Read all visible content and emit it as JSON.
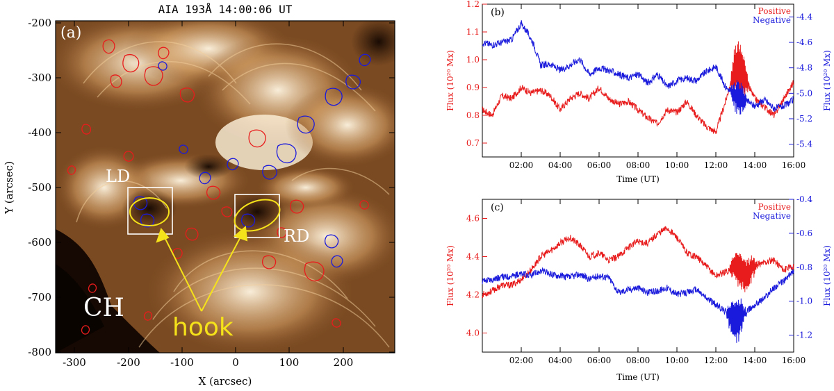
{
  "panel_a": {
    "title": "AIA 193Å 14:00:06 UT",
    "label": "(a)",
    "xlabel": "X (arcsec)",
    "ylabel": "Y (arcsec)",
    "x_ticks": [
      "-300",
      "-200",
      "-100",
      "0",
      "100",
      "200"
    ],
    "y_ticks": [
      "-200",
      "-300",
      "-400",
      "-500",
      "-600",
      "-700",
      "-800"
    ],
    "annotations": {
      "ld": "LD",
      "rd": "RD",
      "ch": "CH",
      "hook": "hook"
    },
    "colors": {
      "positive_contour": "#e81c1c",
      "negative_contour": "#1a1adc",
      "hook": "#f5e21a",
      "box": "#ffffff"
    }
  },
  "chart_data": [
    {
      "type": "line",
      "panel_label": "(b)",
      "xlabel": "Time (UT)",
      "ylabel_left": "Flux (10²⁰ Mx)",
      "ylabel_right": "Flux (10²⁰ Mx)",
      "x_ticks": [
        "02:00",
        "04:00",
        "06:00",
        "08:00",
        "10:00",
        "12:00",
        "14:00",
        "16:00"
      ],
      "y_left_ticks": [
        "1.2",
        "1.1",
        "1.0",
        "0.9",
        "0.8",
        "0.7"
      ],
      "y_right_ticks": [
        "-4.4",
        "-4.6",
        "-4.8",
        "-5.0",
        "-5.2",
        "-5.4"
      ],
      "xlim_hours": [
        0,
        16
      ],
      "ylim_left": [
        0.65,
        1.2
      ],
      "ylim_right": [
        -5.5,
        -4.3
      ],
      "legend": [
        "Positive",
        "Negative"
      ],
      "series": [
        {
          "name": "Positive",
          "axis": "left",
          "color": "#e81c1c",
          "t": [
            0,
            0.5,
            1,
            1.5,
            2,
            2.5,
            3,
            3.5,
            4,
            4.5,
            5,
            5.5,
            6,
            6.5,
            7,
            7.5,
            8,
            8.5,
            9,
            9.5,
            10,
            10.5,
            11,
            11.5,
            12,
            12.5,
            13,
            13.5,
            14,
            14.5,
            15,
            15.5,
            16
          ],
          "values": [
            0.82,
            0.8,
            0.87,
            0.86,
            0.9,
            0.88,
            0.89,
            0.87,
            0.82,
            0.86,
            0.88,
            0.86,
            0.9,
            0.86,
            0.84,
            0.85,
            0.82,
            0.79,
            0.77,
            0.82,
            0.81,
            0.85,
            0.8,
            0.76,
            0.74,
            0.85,
            0.98,
            0.93,
            0.86,
            0.83,
            0.8,
            0.86,
            0.92
          ],
          "oscillation_window": [
            12.7,
            13.7
          ],
          "oscillation_amp": 0.1
        },
        {
          "name": "Negative",
          "axis": "right",
          "color": "#1a1adc",
          "t": [
            0,
            0.5,
            1,
            1.5,
            2,
            2.3,
            2.6,
            3,
            3.5,
            4,
            4.5,
            5,
            5.5,
            6,
            6.5,
            7,
            7.5,
            8,
            8.5,
            9,
            9.5,
            10,
            10.5,
            11,
            11.5,
            12,
            12.5,
            13,
            13.5,
            14,
            14.5,
            15,
            15.5,
            16
          ],
          "values": [
            -4.6,
            -4.62,
            -4.6,
            -4.58,
            -4.45,
            -4.52,
            -4.6,
            -4.78,
            -4.77,
            -4.82,
            -4.78,
            -4.73,
            -4.85,
            -4.8,
            -4.82,
            -4.85,
            -4.88,
            -4.85,
            -4.92,
            -4.85,
            -4.95,
            -4.9,
            -4.88,
            -4.9,
            -4.83,
            -4.79,
            -4.95,
            -5.02,
            -5.05,
            -5.1,
            -5.05,
            -5.12,
            -5.1,
            -5.05
          ],
          "oscillation_window": [
            12.7,
            13.6
          ],
          "oscillation_amp": 0.12
        }
      ]
    },
    {
      "type": "line",
      "panel_label": "(c)",
      "xlabel": "Time (UT)",
      "ylabel_left": "Flux (10²⁰ Mx)",
      "ylabel_right": "Flux (10²⁰ Mx)",
      "x_ticks": [
        "02:00",
        "04:00",
        "06:00",
        "08:00",
        "10:00",
        "12:00",
        "14:00",
        "16:00"
      ],
      "y_left_ticks": [
        "4.6",
        "4.4",
        "4.2",
        "4.0"
      ],
      "y_right_ticks": [
        "-0.4",
        "-0.6",
        "-0.8",
        "-1.0",
        "-1.2"
      ],
      "xlim_hours": [
        0,
        16
      ],
      "ylim_left": [
        3.9,
        4.7
      ],
      "ylim_right": [
        -1.3,
        -0.4
      ],
      "legend": [
        "Positive",
        "Negative"
      ],
      "series": [
        {
          "name": "Positive",
          "axis": "left",
          "color": "#e81c1c",
          "t": [
            0,
            0.5,
            1,
            1.5,
            2,
            2.5,
            3,
            3.5,
            4,
            4.5,
            5,
            5.5,
            6,
            6.5,
            7,
            7.5,
            8,
            8.5,
            9,
            9.5,
            10,
            10.5,
            11,
            11.5,
            12,
            12.5,
            13,
            13.5,
            14,
            14.5,
            15,
            15.5,
            16
          ],
          "values": [
            4.2,
            4.22,
            4.25,
            4.25,
            4.28,
            4.33,
            4.4,
            4.43,
            4.47,
            4.5,
            4.46,
            4.4,
            4.42,
            4.38,
            4.4,
            4.45,
            4.48,
            4.47,
            4.52,
            4.55,
            4.5,
            4.42,
            4.4,
            4.35,
            4.3,
            4.32,
            4.35,
            4.3,
            4.35,
            4.37,
            4.38,
            4.33,
            4.35
          ],
          "oscillation_window": [
            12.6,
            14.2
          ],
          "oscillation_amp": 0.09
        },
        {
          "name": "Negative",
          "axis": "right",
          "color": "#1a1adc",
          "t": [
            0,
            0.5,
            1,
            1.5,
            2,
            2.5,
            3,
            3.5,
            4,
            4.5,
            5,
            5.5,
            6,
            6.5,
            7,
            7.5,
            8,
            8.5,
            9,
            9.5,
            10,
            10.5,
            11,
            11.5,
            12,
            12.5,
            13,
            13.5,
            14,
            14.5,
            15,
            15.5,
            16
          ],
          "values": [
            -0.88,
            -0.87,
            -0.86,
            -0.85,
            -0.84,
            -0.85,
            -0.82,
            -0.84,
            -0.85,
            -0.86,
            -0.84,
            -0.87,
            -0.85,
            -0.86,
            -0.95,
            -0.93,
            -0.92,
            -0.95,
            -0.94,
            -0.92,
            -0.96,
            -0.95,
            -0.93,
            -0.98,
            -1.02,
            -1.06,
            -1.12,
            -1.07,
            -1.02,
            -0.98,
            -0.92,
            -0.88,
            -0.82
          ],
          "oscillation_window": [
            12.5,
            13.6
          ],
          "oscillation_amp": 0.12
        }
      ]
    }
  ]
}
